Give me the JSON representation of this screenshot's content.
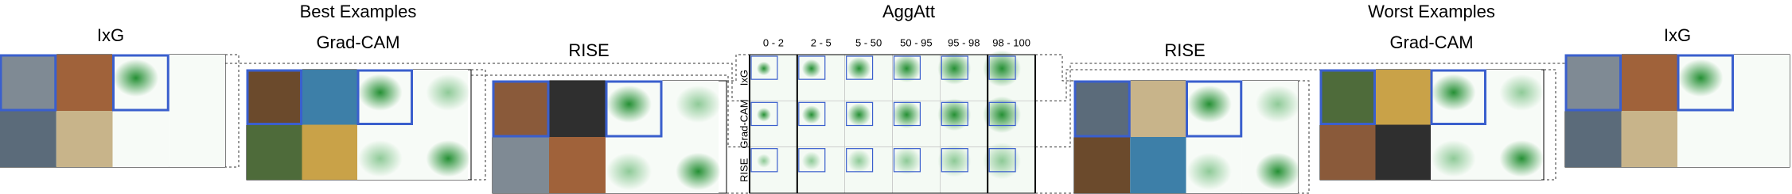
{
  "header": {
    "best": "Best Examples",
    "aggatt": "AggAtt",
    "worst": "Worst Examples"
  },
  "panels": [
    {
      "title": "IxG"
    },
    {
      "title": "Grad-CAM"
    },
    {
      "title": "RISE"
    },
    {
      "title": "RISE"
    },
    {
      "title": "Grad-CAM"
    },
    {
      "title": "IxG"
    }
  ],
  "aggatt": {
    "columns": [
      "0 - 2",
      "2 - 5",
      "5 - 50",
      "50 - 95",
      "95 - 98",
      "98 - 100"
    ],
    "rows": [
      "IxG",
      "Grad-CAM",
      "RISE"
    ]
  }
}
